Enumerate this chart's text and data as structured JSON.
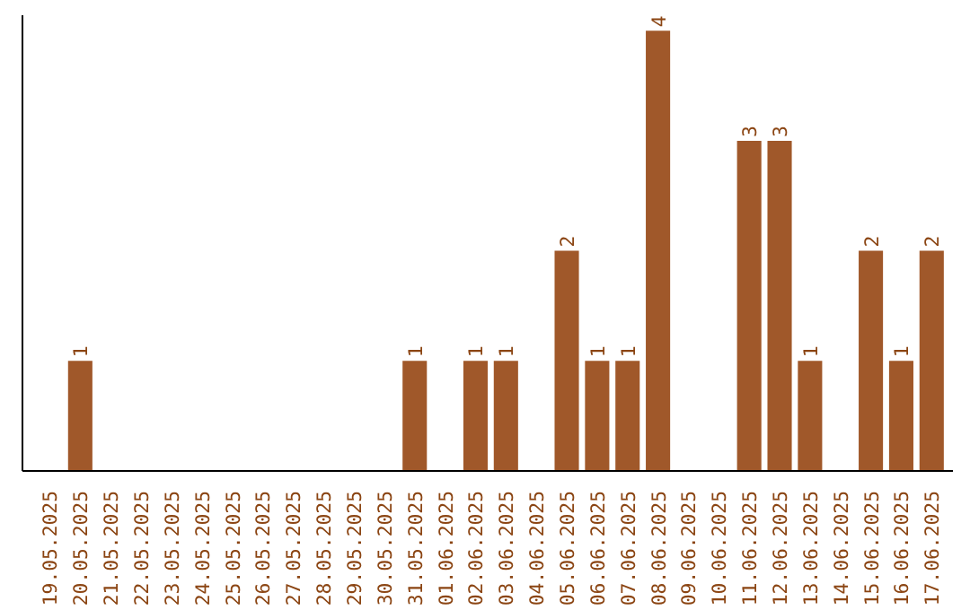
{
  "chart_data": {
    "type": "bar",
    "categories": [
      "19.05.2025",
      "20.05.2025",
      "21.05.2025",
      "22.05.2025",
      "23.05.2025",
      "24.05.2025",
      "25.05.2025",
      "26.05.2025",
      "27.05.2025",
      "28.05.2025",
      "29.05.2025",
      "30.05.2025",
      "31.05.2025",
      "01.06.2025",
      "02.06.2025",
      "03.06.2025",
      "04.06.2025",
      "05.06.2025",
      "06.06.2025",
      "07.06.2025",
      "08.06.2025",
      "09.06.2025",
      "10.06.2025",
      "11.06.2025",
      "12.06.2025",
      "13.06.2025",
      "14.06.2025",
      "15.06.2025",
      "16.06.2025",
      "17.06.2025"
    ],
    "values": [
      0,
      1,
      0,
      0,
      0,
      0,
      0,
      0,
      0,
      0,
      0,
      0,
      1,
      0,
      1,
      1,
      0,
      2,
      1,
      1,
      4,
      0,
      0,
      3,
      3,
      1,
      0,
      2,
      1,
      2
    ],
    "value_labels": [
      null,
      "1",
      null,
      null,
      null,
      null,
      null,
      null,
      null,
      null,
      null,
      null,
      "1",
      null,
      "1",
      "1",
      null,
      "2",
      "1",
      "1",
      "4",
      null,
      null,
      "3",
      "3",
      "1",
      null,
      "2",
      "1",
      "2"
    ],
    "color": "#a0582a",
    "grid": false,
    "tick_labels": "x"
  }
}
